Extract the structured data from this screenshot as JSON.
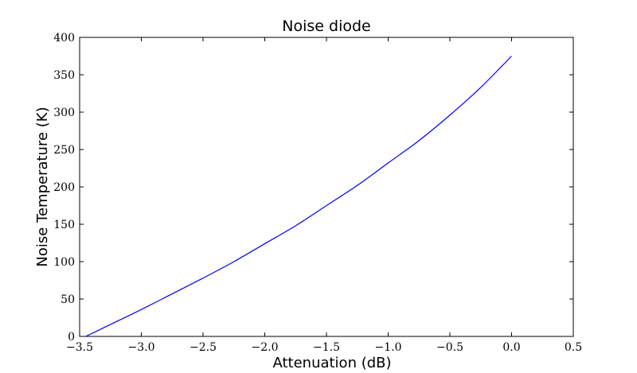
{
  "chart_data": {
    "type": "line",
    "title": "Noise diode",
    "xlabel": "Attenuation (dB)",
    "ylabel": "Noise Temperature (K)",
    "xlim": [
      -3.5,
      0.5
    ],
    "ylim": [
      0,
      400
    ],
    "xticks": [
      -3.5,
      -3.0,
      -2.5,
      -2.0,
      -1.5,
      -1.0,
      -0.5,
      0.0,
      0.5
    ],
    "xtick_labels": [
      "−3.5",
      "−3.0",
      "−2.5",
      "−2.0",
      "−1.5",
      "−1.0",
      "−0.5",
      "0.0",
      "0.5"
    ],
    "yticks": [
      0,
      50,
      100,
      150,
      200,
      250,
      300,
      350,
      400
    ],
    "ytick_labels": [
      "0",
      "50",
      "100",
      "150",
      "200",
      "250",
      "300",
      "350",
      "400"
    ],
    "grid": false,
    "series": [
      {
        "color": "#0000ff",
        "x": [
          -3.45,
          -3.25,
          -3.0,
          -2.75,
          -2.5,
          -2.25,
          -2.0,
          -1.75,
          -1.5,
          -1.25,
          -1.0,
          -0.75,
          -0.5,
          -0.25,
          0.0
        ],
        "y": [
          0,
          16,
          36,
          57,
          78,
          100,
          124,
          148,
          175,
          202,
          232,
          262,
          296,
          333,
          375
        ]
      }
    ]
  }
}
